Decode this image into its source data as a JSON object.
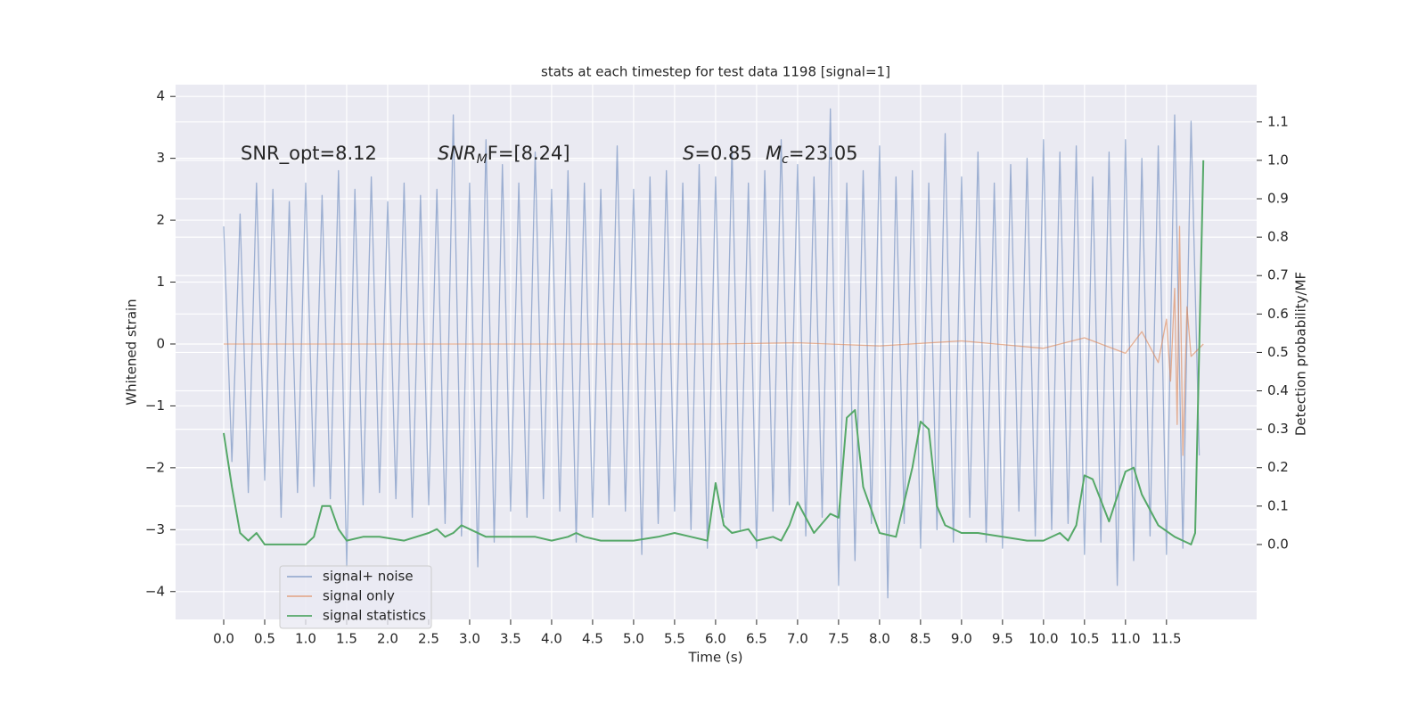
{
  "chart_data": {
    "type": "line",
    "title": "stats at each timestep for test data 1198 [signal=1]",
    "x_label": "Time (s)",
    "y_label": "Whitened strain",
    "y2_label": "Detection probability/MF",
    "annotations": [
      "SNR_opt=8.12",
      [
        "SNR",
        "M",
        "F=[8.24]"
      ],
      [
        "S",
        "=0.85"
      ],
      [
        "M",
        "c",
        "=23.05"
      ]
    ],
    "grid": true,
    "xlim": [
      -0.587,
      12.6
    ],
    "xticks": [
      {
        "value": 0,
        "label": "0.0"
      },
      0.5,
      {
        "value": 1,
        "label": "1.0"
      },
      1.5,
      {
        "value": 2,
        "label": "2.0"
      },
      2.5,
      {
        "value": 3,
        "label": "3.0"
      },
      3.5,
      {
        "value": 4,
        "label": "4.0"
      },
      4.5,
      {
        "value": 5,
        "label": "5.0"
      },
      5.5,
      {
        "value": 6,
        "label": "6.0"
      },
      6.5,
      {
        "value": 7,
        "label": "7.0"
      },
      7.5,
      {
        "value": 8,
        "label": "8.0"
      },
      8.5,
      {
        "value": 9,
        "label": "9.0"
      },
      9.5,
      {
        "value": 10,
        "label": "10.0"
      },
      10.5,
      {
        "value": 11,
        "label": "11.0"
      },
      11.5
    ],
    "ylim": [
      -4.45,
      4.19
    ],
    "yticks": [
      {
        "value": -4,
        "label": "−4"
      },
      {
        "value": -3,
        "label": "−3"
      },
      {
        "value": -2,
        "label": "−2"
      },
      {
        "value": -1,
        "label": "−1"
      },
      0,
      1,
      2,
      3,
      4
    ],
    "y2lim": [
      -0.195,
      1.197
    ],
    "y2ticks": [
      {
        "value": 0,
        "label": "0.0"
      },
      0.1,
      0.2,
      0.3,
      0.4,
      0.5,
      0.6,
      0.7,
      0.8,
      0.9,
      {
        "value": 1,
        "label": "1.0"
      },
      1.1
    ],
    "series": [
      {
        "name": "signal+ noise",
        "color": "#4c72b0",
        "alpha": 0.5,
        "x": [
          0.0,
          0.1,
          0.2,
          0.3,
          0.4,
          0.5,
          0.6,
          0.7,
          0.8,
          0.9,
          1.0,
          1.1,
          1.2,
          1.3,
          1.4,
          1.5,
          1.6,
          1.7,
          1.8,
          1.9,
          2.0,
          2.1,
          2.2,
          2.3,
          2.4,
          2.5,
          2.6,
          2.7,
          2.8,
          2.9,
          3.0,
          3.1,
          3.2,
          3.3,
          3.4,
          3.5,
          3.6,
          3.7,
          3.8,
          3.9,
          4.0,
          4.1,
          4.2,
          4.3,
          4.4,
          4.5,
          4.6,
          4.7,
          4.8,
          4.9,
          5.0,
          5.1,
          5.2,
          5.3,
          5.4,
          5.5,
          5.6,
          5.7,
          5.8,
          5.9,
          6.0,
          6.1,
          6.2,
          6.3,
          6.4,
          6.5,
          6.6,
          6.7,
          6.8,
          6.9,
          7.0,
          7.1,
          7.2,
          7.3,
          7.4,
          7.5,
          7.6,
          7.7,
          7.8,
          7.9,
          8.0,
          8.1,
          8.2,
          8.3,
          8.4,
          8.5,
          8.6,
          8.7,
          8.8,
          8.9,
          9.0,
          9.1,
          9.2,
          9.3,
          9.4,
          9.5,
          9.6,
          9.7,
          9.8,
          9.9,
          10.0,
          10.1,
          10.2,
          10.3,
          10.4,
          10.5,
          10.6,
          10.7,
          10.8,
          10.9,
          11.0,
          11.1,
          11.2,
          11.3,
          11.4,
          11.5,
          11.6,
          11.7,
          11.8,
          11.9
        ],
        "values": [
          1.9,
          -1.9,
          2.1,
          -2.4,
          2.6,
          -2.2,
          2.5,
          -2.8,
          2.3,
          -2.4,
          2.6,
          -2.3,
          2.4,
          -2.5,
          2.8,
          -3.6,
          2.5,
          -2.6,
          2.7,
          -2.4,
          2.3,
          -2.5,
          2.6,
          -2.8,
          2.4,
          -2.6,
          2.5,
          -2.9,
          3.7,
          -3.1,
          2.6,
          -3.6,
          3.3,
          -3.2,
          2.9,
          -2.7,
          2.6,
          -2.8,
          3.1,
          -2.5,
          2.5,
          -2.7,
          2.8,
          -3.2,
          2.6,
          -2.8,
          2.5,
          -2.6,
          3.2,
          -2.7,
          2.5,
          -3.4,
          2.7,
          -2.9,
          2.8,
          -2.7,
          2.6,
          -3.0,
          2.9,
          -3.3,
          2.7,
          -2.8,
          3.2,
          -3.0,
          2.6,
          -3.3,
          2.8,
          -2.7,
          3.3,
          -2.6,
          2.9,
          -3.1,
          2.7,
          -2.8,
          3.8,
          -3.9,
          2.6,
          -3.5,
          2.8,
          -2.9,
          3.2,
          -4.1,
          2.7,
          -2.9,
          2.8,
          -3.3,
          2.6,
          -3.0,
          3.4,
          -3.2,
          2.7,
          -2.8,
          3.1,
          -3.2,
          2.6,
          -3.3,
          2.9,
          -2.7,
          3.0,
          -3.1,
          3.3,
          -3.0,
          3.1,
          -2.9,
          3.2,
          -3.4,
          2.7,
          -3.2,
          3.1,
          -3.9,
          3.3,
          -3.5,
          3.0,
          -3.1,
          3.2,
          -3.4,
          3.7,
          -3.3,
          3.6,
          -1.8
        ]
      },
      {
        "name": "signal only",
        "color": "#dd8452",
        "alpha": 0.6,
        "x": [
          0,
          2,
          4,
          6,
          7,
          8,
          9,
          10,
          10.5,
          11,
          11.2,
          11.4,
          11.5,
          11.55,
          11.6,
          11.63,
          11.66,
          11.7,
          11.75,
          11.8,
          11.95
        ],
        "values": [
          0,
          0,
          0,
          0,
          0.02,
          -0.03,
          0.05,
          -0.07,
          0.1,
          -0.15,
          0.2,
          -0.3,
          0.4,
          -0.6,
          0.9,
          -1.3,
          1.9,
          -1.8,
          0.6,
          -0.2,
          0
        ]
      },
      {
        "name": "signal statistics",
        "color": "#55a868",
        "alpha": 1,
        "axis": "y2",
        "x": [
          0,
          0.1,
          0.2,
          0.3,
          0.4,
          0.5,
          0.6,
          0.8,
          1.0,
          1.1,
          1.2,
          1.3,
          1.4,
          1.5,
          1.7,
          1.9,
          2.2,
          2.5,
          2.6,
          2.7,
          2.8,
          2.9,
          3.0,
          3.2,
          3.5,
          3.8,
          4.0,
          4.2,
          4.3,
          4.4,
          4.6,
          5.0,
          5.3,
          5.5,
          5.7,
          5.9,
          6.0,
          6.1,
          6.2,
          6.4,
          6.5,
          6.7,
          6.8,
          6.9,
          7.0,
          7.2,
          7.4,
          7.5,
          7.6,
          7.7,
          7.8,
          8.0,
          8.2,
          8.4,
          8.5,
          8.6,
          8.7,
          8.8,
          9.0,
          9.2,
          9.5,
          9.8,
          10.0,
          10.2,
          10.3,
          10.4,
          10.5,
          10.6,
          10.8,
          11.0,
          11.1,
          11.2,
          11.4,
          11.6,
          11.7,
          11.8,
          11.85,
          11.95
        ],
        "values": [
          0.29,
          0.15,
          0.03,
          0.01,
          0.03,
          0.0,
          0.0,
          0.0,
          0.0,
          0.02,
          0.1,
          0.1,
          0.04,
          0.01,
          0.02,
          0.02,
          0.01,
          0.03,
          0.04,
          0.02,
          0.03,
          0.05,
          0.04,
          0.02,
          0.02,
          0.02,
          0.01,
          0.02,
          0.03,
          0.02,
          0.01,
          0.01,
          0.02,
          0.03,
          0.02,
          0.01,
          0.16,
          0.05,
          0.03,
          0.04,
          0.01,
          0.02,
          0.01,
          0.05,
          0.11,
          0.03,
          0.08,
          0.07,
          0.33,
          0.35,
          0.15,
          0.03,
          0.02,
          0.2,
          0.32,
          0.3,
          0.1,
          0.05,
          0.03,
          0.03,
          0.02,
          0.01,
          0.01,
          0.03,
          0.01,
          0.05,
          0.18,
          0.17,
          0.06,
          0.19,
          0.2,
          0.13,
          0.05,
          0.02,
          0.01,
          0.0,
          0.03,
          1.0
        ]
      }
    ]
  }
}
